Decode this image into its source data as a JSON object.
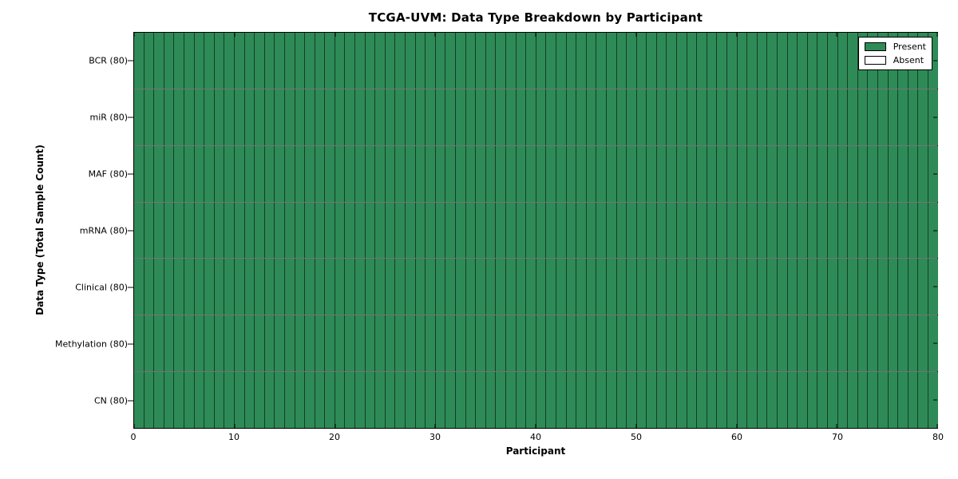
{
  "chart_data": {
    "type": "heatmap",
    "title": "TCGA-UVM: Data Type Breakdown by Participant",
    "xlabel": "Participant",
    "ylabel": "Data Type (Total Sample Count)",
    "x_range": [
      0,
      80
    ],
    "x_ticks": [
      0,
      10,
      20,
      30,
      40,
      50,
      60,
      70,
      80
    ],
    "n_participants": 80,
    "all_present": true,
    "rows": [
      {
        "label": "BCR (80)",
        "data_type": "BCR",
        "total_sample_count": 80,
        "present_count": 80,
        "absent_count": 0
      },
      {
        "label": "miR (80)",
        "data_type": "miR",
        "total_sample_count": 80,
        "present_count": 80,
        "absent_count": 0
      },
      {
        "label": "MAF (80)",
        "data_type": "MAF",
        "total_sample_count": 80,
        "present_count": 80,
        "absent_count": 0
      },
      {
        "label": "mRNA (80)",
        "data_type": "mRNA",
        "total_sample_count": 80,
        "present_count": 80,
        "absent_count": 0
      },
      {
        "label": "Clinical (80)",
        "data_type": "Clinical",
        "total_sample_count": 80,
        "present_count": 80,
        "absent_count": 0
      },
      {
        "label": "Methylation (80)",
        "data_type": "Methylation",
        "total_sample_count": 80,
        "present_count": 80,
        "absent_count": 0
      },
      {
        "label": "CN (80)",
        "data_type": "CN",
        "total_sample_count": 80,
        "present_count": 80,
        "absent_count": 0
      }
    ],
    "legend": {
      "position": "upper-right",
      "entries": [
        {
          "label": "Present",
          "color": "#2e8b57"
        },
        {
          "label": "Absent",
          "color": "#ffffff"
        }
      ]
    },
    "colors": {
      "present": "#2e8b57",
      "absent": "#ffffff",
      "cell_border": "rgba(0,0,0,0.55)",
      "axis": "#000000",
      "background": "#ffffff"
    },
    "grid": true
  }
}
